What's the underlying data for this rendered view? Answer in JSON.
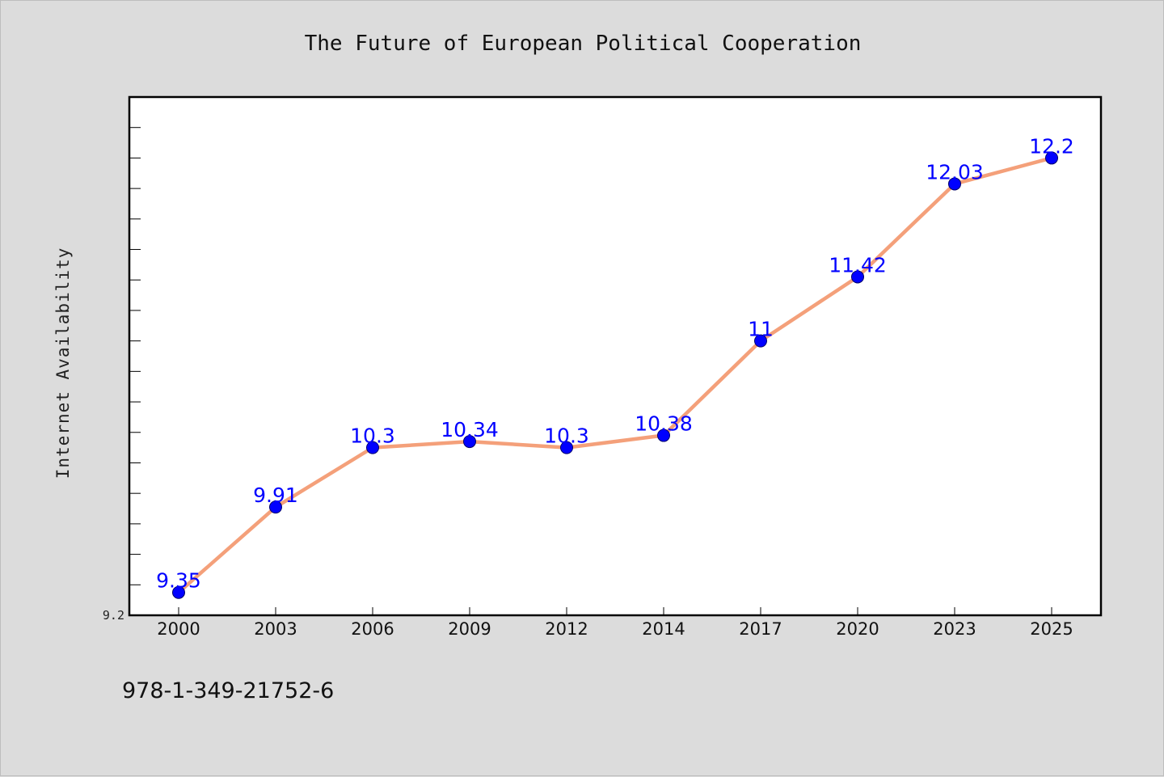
{
  "chart_data": {
    "type": "line",
    "title": "The Future of European Political Cooperation",
    "xlabel": "",
    "ylabel": "Internet Availability",
    "categories": [
      "2000",
      "2003",
      "2006",
      "2009",
      "2012",
      "2014",
      "2017",
      "2020",
      "2023",
      "2025"
    ],
    "series": [
      {
        "values": [
          9.35,
          9.91,
          10.3,
          10.34,
          10.3,
          10.38,
          11,
          11.42,
          12.03,
          12.2
        ],
        "labels": [
          "9.35",
          "9.91",
          "10.3",
          "10.34",
          "10.3",
          "10.38",
          "11",
          "11.42",
          "12.03",
          "12.2"
        ],
        "line_color": "#f4a07a",
        "marker_color": "#0000ff"
      }
    ],
    "ylim": [
      9.2,
      12.6
    ],
    "y_tick_labels": [
      "9.2"
    ],
    "grid": false,
    "legend": "none"
  },
  "footer": {
    "isbn": "978-1-349-21752-6"
  },
  "colors": {
    "background": "#dcdcdc",
    "plot_background": "#ffffff",
    "line": "#f4a07a",
    "marker": "#0000ff",
    "data_label": "#0000ff"
  }
}
